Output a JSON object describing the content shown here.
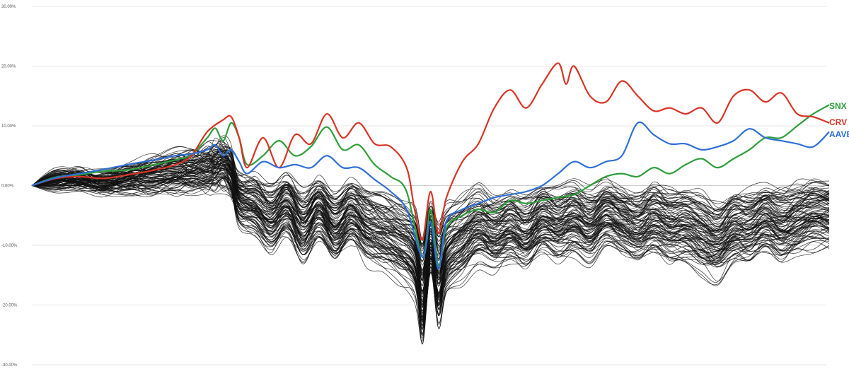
{
  "chart_data": {
    "type": "line",
    "title": "",
    "xlabel": "",
    "ylabel": "",
    "ylim": [
      -30,
      30
    ],
    "y_ticks": [
      {
        "value": 30,
        "label": "30.00%"
      },
      {
        "value": 20,
        "label": "20.00%"
      },
      {
        "value": 10,
        "label": "10.00%"
      },
      {
        "value": 0,
        "label": "0.00%"
      },
      {
        "value": -10,
        "label": "-10.00%"
      },
      {
        "value": -20,
        "label": "-20.00%"
      },
      {
        "value": -30,
        "label": "-30.00%"
      }
    ],
    "grid": true,
    "legend": "right end of each highlighted line",
    "x_index_range": [
      0,
      100
    ],
    "highlighted_series": [
      {
        "name": "SNX",
        "color": "#2e9e3a",
        "points": [
          [
            0,
            0
          ],
          [
            3,
            1.4
          ],
          [
            6,
            1.8
          ],
          [
            9,
            2.4
          ],
          [
            12,
            2.6
          ],
          [
            15,
            3.4
          ],
          [
            18,
            4.3
          ],
          [
            20,
            5.2
          ],
          [
            22,
            8
          ],
          [
            23,
            9.6
          ],
          [
            24,
            7.5
          ],
          [
            25,
            10.5
          ],
          [
            26,
            8
          ],
          [
            27,
            3.5
          ],
          [
            29,
            5
          ],
          [
            31,
            7.5
          ],
          [
            33,
            5
          ],
          [
            35,
            6.5
          ],
          [
            37,
            9.8
          ],
          [
            39,
            6
          ],
          [
            41,
            6.8
          ],
          [
            43,
            3.5
          ],
          [
            45,
            1.5
          ],
          [
            47,
            -1
          ],
          [
            49,
            -12
          ],
          [
            50,
            -4
          ],
          [
            51,
            -13.5
          ],
          [
            52,
            -7
          ],
          [
            54,
            -5
          ],
          [
            56,
            -4
          ],
          [
            58,
            -4.5
          ],
          [
            60,
            -2.5
          ],
          [
            62,
            -3
          ],
          [
            64,
            -2.5
          ],
          [
            66,
            -2
          ],
          [
            68,
            -1.5
          ],
          [
            70,
            0
          ],
          [
            72,
            1.5
          ],
          [
            74,
            2
          ],
          [
            76,
            1.5
          ],
          [
            78,
            3
          ],
          [
            80,
            2
          ],
          [
            82,
            3.5
          ],
          [
            84,
            4.5
          ],
          [
            86,
            3
          ],
          [
            88,
            4.5
          ],
          [
            90,
            6
          ],
          [
            92,
            8
          ],
          [
            94,
            8
          ],
          [
            96,
            10
          ],
          [
            98,
            12
          ],
          [
            100,
            13.5
          ]
        ]
      },
      {
        "name": "CRV",
        "color": "#d93425",
        "points": [
          [
            0,
            0
          ],
          [
            3,
            1.2
          ],
          [
            6,
            1.5
          ],
          [
            9,
            1.2
          ],
          [
            12,
            1.8
          ],
          [
            15,
            2.5
          ],
          [
            18,
            3.5
          ],
          [
            20,
            5
          ],
          [
            22,
            9
          ],
          [
            24,
            11
          ],
          [
            25,
            11.5
          ],
          [
            26,
            8
          ],
          [
            27,
            3
          ],
          [
            29,
            8
          ],
          [
            31,
            3
          ],
          [
            33,
            8.5
          ],
          [
            35,
            7
          ],
          [
            37,
            12
          ],
          [
            39,
            8
          ],
          [
            41,
            10.5
          ],
          [
            43,
            7
          ],
          [
            45,
            6.5
          ],
          [
            47,
            3
          ],
          [
            48,
            -4
          ],
          [
            49,
            -9
          ],
          [
            50,
            -1
          ],
          [
            51,
            -8
          ],
          [
            52,
            -2
          ],
          [
            54,
            4
          ],
          [
            56,
            7
          ],
          [
            58,
            13
          ],
          [
            60,
            16
          ],
          [
            62,
            13
          ],
          [
            64,
            17
          ],
          [
            66,
            20.5
          ],
          [
            67,
            17
          ],
          [
            68,
            20
          ],
          [
            70,
            15
          ],
          [
            72,
            14
          ],
          [
            74,
            17.5
          ],
          [
            76,
            15
          ],
          [
            78,
            12.5
          ],
          [
            80,
            13
          ],
          [
            82,
            12
          ],
          [
            84,
            13
          ],
          [
            86,
            10.5
          ],
          [
            88,
            15
          ],
          [
            90,
            16
          ],
          [
            92,
            14
          ],
          [
            94,
            15.5
          ],
          [
            96,
            12
          ],
          [
            98,
            11.5
          ],
          [
            100,
            10.5
          ]
        ]
      },
      {
        "name": "AAVE",
        "color": "#2f6fd6",
        "points": [
          [
            0,
            0
          ],
          [
            3,
            1.3
          ],
          [
            6,
            2
          ],
          [
            9,
            2.7
          ],
          [
            12,
            3.5
          ],
          [
            15,
            4.2
          ],
          [
            18,
            5
          ],
          [
            20,
            5.3
          ],
          [
            22,
            6
          ],
          [
            23,
            6.8
          ],
          [
            24,
            5
          ],
          [
            25,
            6
          ],
          [
            26,
            4
          ],
          [
            27,
            2
          ],
          [
            29,
            4
          ],
          [
            31,
            3
          ],
          [
            33,
            3.5
          ],
          [
            35,
            3
          ],
          [
            37,
            5
          ],
          [
            39,
            3
          ],
          [
            41,
            3
          ],
          [
            43,
            1
          ],
          [
            45,
            -1
          ],
          [
            47,
            -4
          ],
          [
            49,
            -12
          ],
          [
            50,
            -6
          ],
          [
            51,
            -14
          ],
          [
            52,
            -6
          ],
          [
            54,
            -4
          ],
          [
            56,
            -3
          ],
          [
            58,
            -2
          ],
          [
            60,
            -1.5
          ],
          [
            62,
            -1
          ],
          [
            64,
            0
          ],
          [
            66,
            2
          ],
          [
            68,
            4
          ],
          [
            70,
            3
          ],
          [
            72,
            4
          ],
          [
            74,
            5
          ],
          [
            76,
            10.5
          ],
          [
            78,
            8.5
          ],
          [
            80,
            7
          ],
          [
            82,
            7
          ],
          [
            84,
            6
          ],
          [
            86,
            6.5
          ],
          [
            88,
            7.5
          ],
          [
            90,
            9.5
          ],
          [
            92,
            8
          ],
          [
            94,
            7.5
          ],
          [
            96,
            7
          ],
          [
            98,
            6.5
          ],
          [
            100,
            9
          ]
        ]
      }
    ],
    "background_series": {
      "count": 100,
      "color": "#111111",
      "description_values": "ensemble of unlabeled asset performance lines clustered between -10% and +5%, dipping to about -18% to -28% near the middle"
    }
  }
}
